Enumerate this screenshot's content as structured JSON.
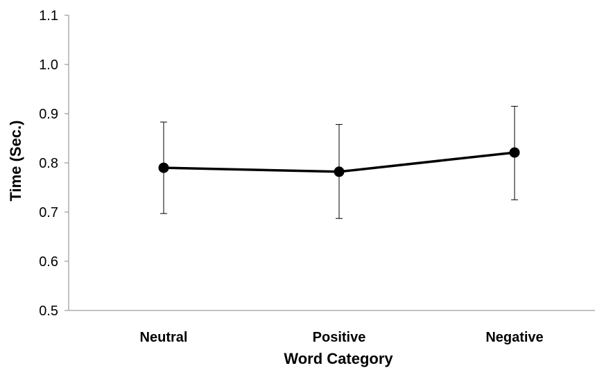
{
  "chart_data": {
    "type": "line",
    "categories": [
      "Neutral",
      "Positive",
      "Negative"
    ],
    "series": [
      {
        "values": [
          0.79,
          0.782,
          0.821
        ],
        "error_upper": [
          0.883,
          0.878,
          0.915
        ],
        "error_lower": [
          0.697,
          0.687,
          0.725
        ]
      }
    ],
    "xlabel": "Word Category",
    "ylabel": "Time (Sec.)",
    "ylim": [
      0.5,
      1.1
    ],
    "yticks": [
      "0.5",
      "0.6",
      "0.7",
      "0.8",
      "0.9",
      "1.0",
      "1.1"
    ],
    "grid": false,
    "legend": false,
    "line_color": "#000000",
    "marker": "filled-circle"
  }
}
